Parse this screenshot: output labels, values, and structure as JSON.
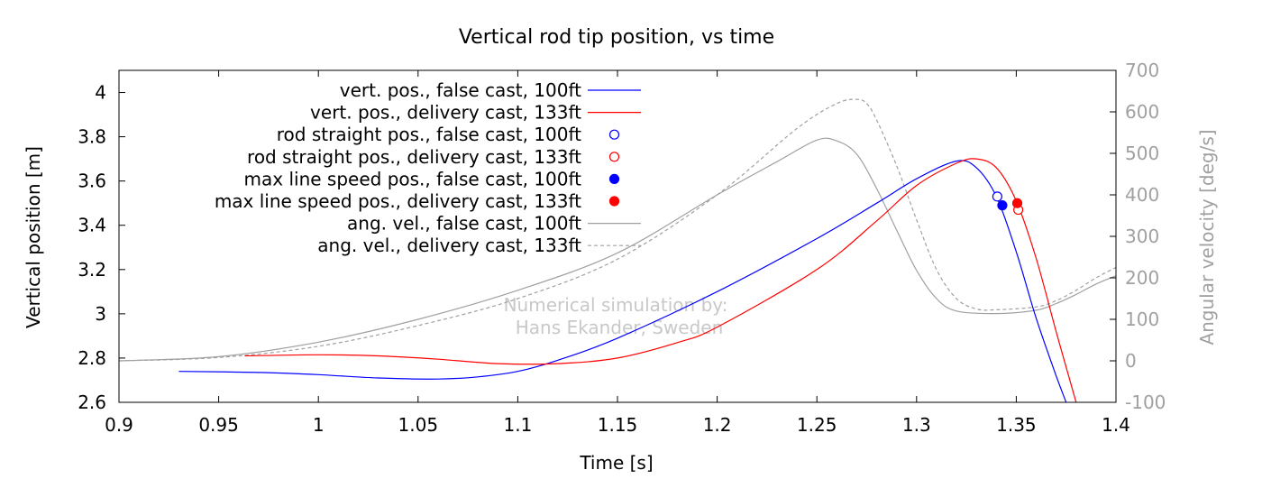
{
  "chart_data": {
    "type": "line",
    "title": "Vertical rod tip position, vs time",
    "xlabel": "Time [s]",
    "ylabel": "Vertical position [m]",
    "y2label": "Angular velocity [deg/s]",
    "xlim": [
      0.9,
      1.4
    ],
    "ylim": [
      2.6,
      4.1
    ],
    "y2lim": [
      -100,
      700
    ],
    "xticks": [
      0.9,
      0.95,
      1,
      1.05,
      1.1,
      1.15,
      1.2,
      1.25,
      1.3,
      1.35,
      1.4
    ],
    "xtick_labels": [
      "0.9",
      "0.95",
      "1",
      "1.05",
      "1.1",
      "1.15",
      "1.2",
      "1.25",
      "1.3",
      "1.35",
      "1.4"
    ],
    "yticks": [
      2.6,
      2.8,
      3,
      3.2,
      3.4,
      3.6,
      3.8,
      4
    ],
    "ytick_labels": [
      "2.6",
      "2.8",
      "3",
      "3.2",
      "3.4",
      "3.6",
      "3.8",
      "4"
    ],
    "y2ticks": [
      -100,
      0,
      100,
      200,
      300,
      400,
      500,
      600,
      700
    ],
    "y2tick_labels": [
      "-100",
      "0",
      "100",
      "200",
      "300",
      "400",
      "500",
      "600",
      "700"
    ],
    "grid": false,
    "legend_position": "top-left",
    "annotation": [
      "Numerical simulation by:",
      "Hans Ekander, Sweden"
    ],
    "series": [
      {
        "name": "vert. pos., false cast, 100ft",
        "kind": "line",
        "axis": "y",
        "color": "#0000ff",
        "x": [
          0.93,
          0.97,
          1.0,
          1.03,
          1.06,
          1.08,
          1.1,
          1.12,
          1.15,
          1.2,
          1.25,
          1.28,
          1.3,
          1.32,
          1.33,
          1.34,
          1.35,
          1.36,
          1.37,
          1.375
        ],
        "y": [
          2.74,
          2.735,
          2.725,
          2.71,
          2.705,
          2.715,
          2.74,
          2.79,
          2.89,
          3.1,
          3.34,
          3.5,
          3.61,
          3.69,
          3.66,
          3.53,
          3.28,
          2.98,
          2.72,
          2.6
        ]
      },
      {
        "name": "vert. pos., delivery cast, 133ft",
        "kind": "line",
        "axis": "y",
        "color": "#ff0000",
        "x": [
          0.963,
          1.0,
          1.03,
          1.06,
          1.09,
          1.12,
          1.15,
          1.18,
          1.2,
          1.25,
          1.28,
          1.3,
          1.32,
          1.33,
          1.34,
          1.35,
          1.36,
          1.37,
          1.38
        ],
        "y": [
          2.81,
          2.815,
          2.81,
          2.795,
          2.775,
          2.775,
          2.8,
          2.87,
          2.94,
          3.2,
          3.42,
          3.58,
          3.68,
          3.7,
          3.66,
          3.51,
          3.25,
          2.92,
          2.6
        ]
      },
      {
        "name": "rod straight pos., false cast, 100ft",
        "kind": "point",
        "filled": false,
        "axis": "y",
        "color": "#0000ff",
        "x": [
          1.3405
        ],
        "y": [
          3.53
        ]
      },
      {
        "name": "rod straight pos., delivery cast, 133ft",
        "kind": "point",
        "filled": false,
        "axis": "y",
        "color": "#ff0000",
        "x": [
          1.351
        ],
        "y": [
          3.47
        ]
      },
      {
        "name": "max line speed pos., false cast, 100ft",
        "kind": "point",
        "filled": true,
        "axis": "y",
        "color": "#0000ff",
        "x": [
          1.343
        ],
        "y": [
          3.49
        ]
      },
      {
        "name": "max line speed pos., delivery cast, 133ft",
        "kind": "point",
        "filled": true,
        "axis": "y",
        "color": "#ff0000",
        "x": [
          1.3505
        ],
        "y": [
          3.5
        ]
      },
      {
        "name": "ang. vel., false cast, 100ft",
        "kind": "line",
        "axis": "y2",
        "color": "#a0a0a0",
        "x": [
          0.9,
          0.95,
          1.0,
          1.05,
          1.1,
          1.15,
          1.2,
          1.23,
          1.25,
          1.26,
          1.27,
          1.28,
          1.29,
          1.3,
          1.31,
          1.32,
          1.34,
          1.36,
          1.37,
          1.38,
          1.39,
          1.4
        ],
        "y": [
          0,
          10,
          45,
          100,
          170,
          260,
          400,
          480,
          532,
          530,
          498,
          415,
          315,
          218,
          150,
          120,
          114,
          122,
          138,
          160,
          185,
          205
        ]
      },
      {
        "name": "ang. vel., delivery cast, 133ft",
        "kind": "line",
        "axis": "y2",
        "color": "#a0a0a0",
        "dashed": true,
        "x": [
          0.9,
          0.95,
          1.0,
          1.05,
          1.1,
          1.15,
          1.2,
          1.24,
          1.26,
          1.27,
          1.275,
          1.28,
          1.29,
          1.3,
          1.31,
          1.32,
          1.33,
          1.34,
          1.36,
          1.37,
          1.38,
          1.39,
          1.4
        ],
        "y": [
          0,
          8,
          35,
          85,
          150,
          245,
          400,
          560,
          620,
          630,
          620,
          580,
          470,
          340,
          220,
          150,
          125,
          123,
          130,
          145,
          170,
          200,
          225
        ]
      }
    ]
  }
}
